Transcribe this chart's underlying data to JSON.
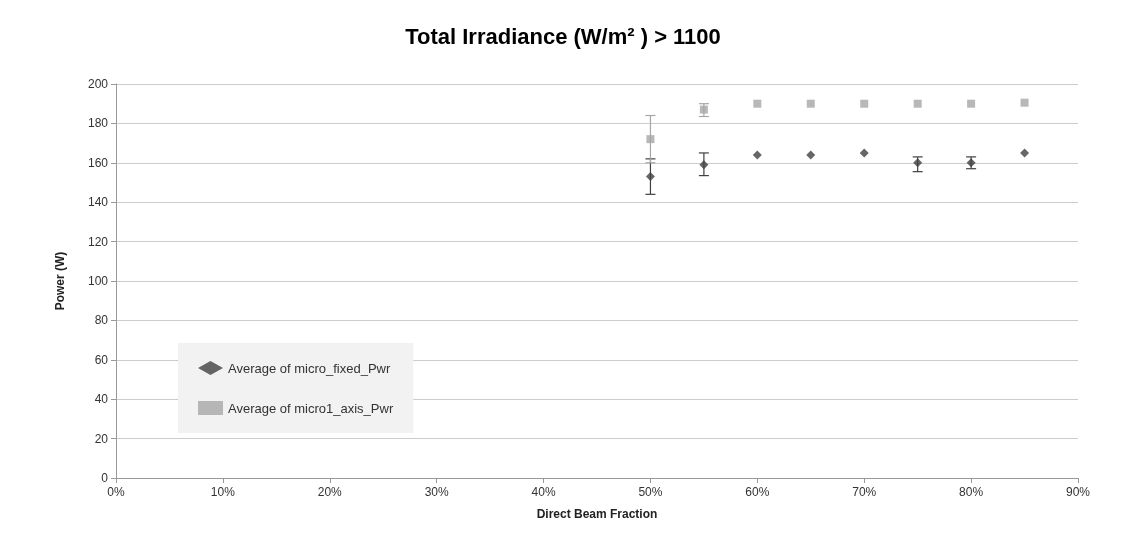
{
  "chart_data": {
    "type": "scatter",
    "title": "Total Irradiance (W/m² ) > 1100",
    "xlabel": "Direct Beam Fraction",
    "ylabel": "Power (W)",
    "x": [
      50,
      55,
      60,
      65,
      70,
      75,
      80,
      85
    ],
    "series": [
      {
        "name": "Average of micro_fixed_Pwr",
        "color": "#404040",
        "marker": "diamond",
        "values": [
          153,
          159,
          164,
          164,
          165,
          160,
          160,
          165
        ],
        "errors": [
          [
            144,
            162
          ],
          [
            153.5,
            165
          ],
          null,
          null,
          null,
          [
            155.5,
            163
          ],
          [
            157,
            163
          ],
          null
        ]
      },
      {
        "name": "Average of micro1_axis_Pwr",
        "color": "#a6a6a6",
        "marker": "square",
        "values": [
          172,
          187,
          190,
          190,
          190,
          190,
          190,
          190.5
        ],
        "errors": [
          [
            160,
            184
          ],
          [
            183.5,
            190
          ],
          null,
          null,
          null,
          null,
          null,
          null
        ]
      }
    ],
    "xlim": [
      0,
      90
    ],
    "xticks": [
      {
        "value": 0,
        "label": "0%"
      },
      {
        "value": 10,
        "label": "10%"
      },
      {
        "value": 20,
        "label": "20%"
      },
      {
        "value": 30,
        "label": "30%"
      },
      {
        "value": 40,
        "label": "40%"
      },
      {
        "value": 50,
        "label": "50%"
      },
      {
        "value": 60,
        "label": "60%"
      },
      {
        "value": 70,
        "label": "70%"
      },
      {
        "value": 80,
        "label": "80%"
      },
      {
        "value": 90,
        "label": "90%"
      }
    ],
    "ylim": [
      0,
      200
    ],
    "yticks": [
      0,
      20,
      40,
      60,
      80,
      100,
      120,
      140,
      160,
      180,
      200
    ],
    "grid": "y",
    "legend": "bottom left"
  }
}
